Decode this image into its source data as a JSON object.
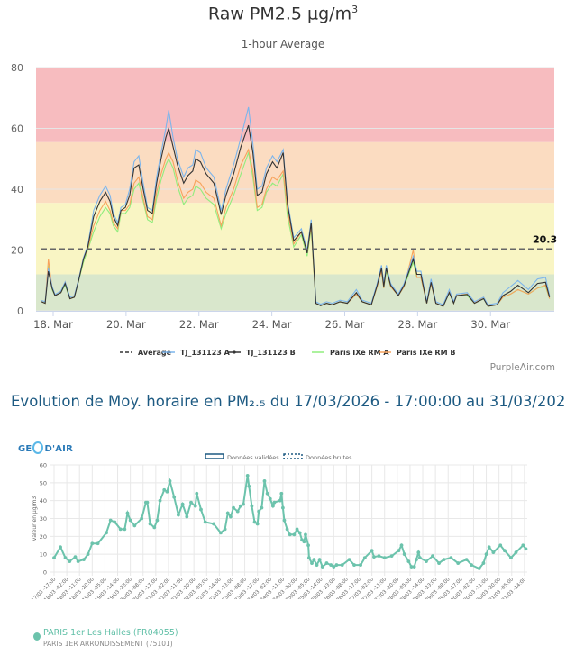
{
  "purpleair": {
    "title": "Raw PM2.5 µg/m",
    "title_sup": "3",
    "subtitle": "1-hour Average",
    "watermark": "PurpleAir.com"
  },
  "heading": "Evolution de Moy. horaire en PM₂.₅ du 17/03/2026 - 17:00:00 au 31/03/2026 - 17",
  "geodair": {
    "logo": "GEO'DAIR",
    "legend_validated": "Données validées",
    "legend_raw": "Données brutes",
    "station_name": "PARIS 1er Les Halles (FR04055)",
    "station_sub": "PARIS 1ER ARRONDISSEMENT (75101)"
  },
  "chart_data": [
    {
      "type": "line",
      "title": "Raw PM2.5 µg/m3",
      "subtitle": "1-hour Average",
      "xlabel": "",
      "ylabel": "",
      "x_unit": "day of March",
      "xlim": [
        17.53,
        31.75
      ],
      "ylim": [
        0,
        80
      ],
      "yticks": [
        0,
        20,
        40,
        60,
        80
      ],
      "xticks": [
        {
          "x": 18,
          "label": "18. Mar"
        },
        {
          "x": 20,
          "label": "20. Mar"
        },
        {
          "x": 22,
          "label": "22. Mar"
        },
        {
          "x": 24,
          "label": "24. Mar"
        },
        {
          "x": 26,
          "label": "26. Mar"
        },
        {
          "x": 28,
          "label": "28. Mar"
        },
        {
          "x": 30,
          "label": "30. Mar"
        }
      ],
      "bands": [
        {
          "from": 0,
          "to": 12,
          "color": "#d9e7cc"
        },
        {
          "from": 12,
          "to": 35.5,
          "color": "#f9f5c4"
        },
        {
          "from": 35.5,
          "to": 55.5,
          "color": "#fbdcc1"
        },
        {
          "from": 55.5,
          "to": 80,
          "color": "#f7bcbf"
        }
      ],
      "average": {
        "name": "Average",
        "value": 20.3,
        "label": "20.3",
        "color": "#666666"
      },
      "legend_position": "bottom",
      "x": [
        17.68,
        17.78,
        17.87,
        17.97,
        18.05,
        18.21,
        18.33,
        18.46,
        18.58,
        18.7,
        18.83,
        18.95,
        19.11,
        19.28,
        19.44,
        19.56,
        19.65,
        19.77,
        19.86,
        19.98,
        20.1,
        20.22,
        20.35,
        20.47,
        20.59,
        20.72,
        20.84,
        20.96,
        21.09,
        21.17,
        21.29,
        21.41,
        21.58,
        21.7,
        21.83,
        21.91,
        22.04,
        22.2,
        22.41,
        22.61,
        22.74,
        22.95,
        23.15,
        23.36,
        23.48,
        23.6,
        23.73,
        23.85,
        24.02,
        24.14,
        24.31,
        24.43,
        24.6,
        24.81,
        24.97,
        25.08,
        25.21,
        25.34,
        25.5,
        25.66,
        25.87,
        26.07,
        26.32,
        26.48,
        26.73,
        26.89,
        27.01,
        27.07,
        27.14,
        27.26,
        27.47,
        27.63,
        27.88,
        27.98,
        28.09,
        28.25,
        28.37,
        28.5,
        28.7,
        28.87,
        28.99,
        29.07,
        29.36,
        29.56,
        29.81,
        29.93,
        30.18,
        30.34,
        30.55,
        30.75,
        31.04,
        31.29,
        31.51,
        31.62
      ],
      "series": [
        {
          "name": "TJ_131123 A",
          "color": "#7cb5ec",
          "values": [
            3.4,
            3,
            14,
            8,
            5.4,
            6.5,
            9.5,
            4.5,
            5,
            10.5,
            17.5,
            21.5,
            33,
            38,
            41,
            38,
            32,
            29,
            34,
            35,
            40,
            49,
            51,
            42,
            34,
            33,
            44,
            52,
            60,
            66,
            57,
            50,
            44,
            47,
            48,
            53,
            52,
            47,
            44,
            33,
            40,
            48,
            57,
            67,
            55,
            40,
            41,
            47,
            51,
            49,
            53,
            36,
            24,
            27,
            20,
            30,
            3,
            2.2,
            3,
            2.5,
            3.5,
            3,
            7,
            3.5,
            2.5,
            9,
            15,
            9,
            15,
            9,
            5.5,
            9,
            18,
            13,
            13,
            3,
            10.5,
            3,
            2,
            7,
            3,
            5.5,
            6,
            3,
            4.5,
            2,
            2.5,
            6,
            8,
            10,
            7,
            10.5,
            11,
            5
          ]
        },
        {
          "name": "TJ_131123 B",
          "color": "#333333",
          "values": [
            3,
            2.5,
            13,
            7.4,
            5,
            6,
            9,
            4,
            4.5,
            10,
            17,
            21,
            31,
            36,
            39,
            36,
            31,
            28,
            33,
            34,
            38,
            47,
            48,
            40,
            33,
            32,
            42,
            50,
            57,
            60,
            54,
            48,
            42,
            44.5,
            46,
            50,
            49,
            45,
            42,
            31.6,
            38,
            45,
            54,
            61,
            52,
            38,
            39,
            45,
            49,
            47,
            52,
            35,
            23,
            26,
            19,
            29,
            2.5,
            1.7,
            2.5,
            2,
            3,
            2.5,
            6,
            3,
            2,
            8.4,
            14,
            8,
            14,
            8.4,
            5,
            8.4,
            17,
            12,
            12,
            2.5,
            9.4,
            2.5,
            1.5,
            6,
            2.5,
            5,
            5.4,
            2.5,
            4,
            1.5,
            2,
            5,
            6.4,
            8.4,
            6,
            9,
            9.4,
            4.5
          ]
        },
        {
          "name": "Paris IXe RM A",
          "color": "#90ed7d",
          "values": [
            3,
            2.5,
            15,
            7,
            5,
            6,
            8.5,
            4,
            4.5,
            10,
            16,
            20,
            26,
            31,
            34,
            32,
            28,
            26,
            32,
            32,
            34,
            40,
            42,
            36,
            30,
            29,
            37,
            43,
            48,
            50,
            47,
            41,
            35,
            37,
            38,
            41,
            40,
            37,
            35,
            27,
            32,
            38,
            45,
            52,
            44,
            33,
            34,
            39,
            42,
            41,
            45,
            31,
            21,
            25,
            18,
            27,
            2.5,
            1.7,
            2.5,
            2,
            3,
            2.5,
            5.5,
            3,
            2,
            8,
            13,
            7.5,
            13,
            8,
            5,
            8,
            16,
            11,
            11,
            2.5,
            9,
            2.5,
            1.5,
            6,
            2.5,
            5,
            5,
            2.5,
            4,
            1.5,
            2,
            4.5,
            5.5,
            7,
            5.5,
            7.5,
            8,
            4
          ]
        },
        {
          "name": "Paris IXe RM B",
          "color": "#f7a35c",
          "values": [
            3,
            2.5,
            17,
            7.5,
            5,
            6,
            9.5,
            4,
            4.5,
            10.5,
            17,
            20.5,
            28,
            33,
            36,
            33,
            29,
            27,
            33,
            33,
            35,
            42,
            44,
            37,
            31,
            30,
            39,
            45,
            50,
            52,
            49,
            43,
            37,
            39,
            40,
            43,
            42,
            39,
            37,
            28,
            34,
            40,
            48,
            53,
            46,
            34,
            35,
            40,
            44,
            43,
            46,
            33,
            22,
            26,
            19,
            28,
            2.5,
            1.7,
            2.5,
            2,
            3,
            2.5,
            5.5,
            3,
            2,
            8,
            13,
            7.5,
            14,
            8,
            5,
            8,
            20,
            11,
            11,
            2.5,
            9,
            2.5,
            1.5,
            6.5,
            2.5,
            5,
            5.5,
            2.5,
            4.5,
            1.5,
            2,
            4.5,
            5.5,
            7,
            5.5,
            7.5,
            8.5,
            4
          ]
        }
      ]
    },
    {
      "type": "line",
      "title": "",
      "xlabel": "",
      "ylabel": "valeur en µg/m3",
      "x_unit": "hours since 17/03 17:00",
      "xlim": [
        0,
        335
      ],
      "ylim": [
        0,
        60
      ],
      "yticks": [
        0,
        10,
        20,
        30,
        40,
        50,
        60
      ],
      "xtick_step_hours": 9,
      "xtick_labels": [
        "17/03 -17:00",
        "18/03 -02:00",
        "18/03 -11:00",
        "18/03 -20:00",
        "19/03 -05:00",
        "19/03 -14:00",
        "19/03 -23:00",
        "20/03 -08:00",
        "20/03 -17:00",
        "21/03 -02:00",
        "21/03 -11:00",
        "21/03 -20:00",
        "22/03 -05:00",
        "22/03 -14:00",
        "22/03 -23:00",
        "23/03 -08:00",
        "23/03 -17:00",
        "24/03 -02:00",
        "24/03 -11:00",
        "24/03 -20:00",
        "25/03 -05:00",
        "25/03 -14:00",
        "25/03 -23:00",
        "26/03 -08:00",
        "26/03 -17:00",
        "27/03 -02:00",
        "27/03 -11:00",
        "27/03 -20:00",
        "28/03 -05:00",
        "28/03 -14:00",
        "28/03 -23:00",
        "29/03 -08:00",
        "29/03 -17:00",
        "30/03 -02:00",
        "30/03 -11:00",
        "30/03 -20:00",
        "31/03 -05:00",
        "31/03 -14:00"
      ],
      "legend": [
        "Données validées",
        "Données brutes"
      ],
      "series": [
        {
          "name": "PARIS 1er Les Halles (FR04055)",
          "color": "#6cc3ac",
          "x": [
            0,
            4.5,
            8,
            11,
            15,
            17,
            21,
            24,
            27,
            31,
            37,
            40,
            43,
            47,
            50,
            52,
            54,
            57,
            62,
            65,
            66,
            68,
            71,
            73,
            75,
            78,
            80,
            82,
            85,
            88,
            91,
            94,
            97,
            100,
            101,
            104,
            107,
            113,
            118,
            121,
            123,
            125,
            127,
            130,
            132,
            134,
            137,
            138,
            140,
            142,
            144,
            145,
            147,
            149,
            151,
            153,
            155,
            156,
            160,
            161,
            162,
            163,
            165,
            167,
            170,
            172,
            174,
            175.5,
            177,
            178,
            180,
            180.5,
            182.5,
            184,
            186,
            188,
            190,
            193,
            196,
            198,
            200,
            204,
            209,
            212.5,
            217,
            220,
            225,
            226.5,
            230,
            234,
            239,
            244,
            246,
            248,
            251,
            253,
            255,
            256.5,
            258,
            259,
            263.5,
            268,
            272.5,
            276,
            281,
            286,
            292,
            295.5,
            301,
            304,
            306,
            308,
            311,
            316,
            319,
            323.5,
            327,
            332,
            334
          ],
          "values": [
            8,
            14,
            8,
            6,
            8.5,
            6,
            7,
            10,
            16,
            16,
            22,
            29,
            28,
            24,
            24,
            33,
            29,
            26,
            30,
            39,
            39,
            27,
            25,
            29,
            40,
            46,
            45,
            51,
            42,
            32,
            38,
            31,
            39,
            37,
            44,
            35,
            28,
            27,
            22,
            24,
            33,
            31,
            36,
            34,
            37,
            38,
            54,
            48,
            37,
            28,
            27,
            34,
            36,
            51,
            44,
            41,
            37,
            39,
            40,
            44,
            36,
            29,
            24,
            21,
            21,
            24,
            22,
            18,
            17,
            21,
            15,
            8,
            5,
            7,
            4,
            7,
            3,
            5,
            4,
            3,
            4,
            4,
            7,
            4,
            4,
            8,
            12,
            8.5,
            9,
            8,
            9,
            12,
            15,
            10,
            6,
            3,
            3,
            7,
            11,
            8,
            6,
            9,
            5,
            7,
            8,
            5,
            7,
            4,
            2,
            5,
            10,
            14,
            11,
            15,
            12,
            8,
            11,
            15,
            13
          ]
        }
      ]
    }
  ]
}
